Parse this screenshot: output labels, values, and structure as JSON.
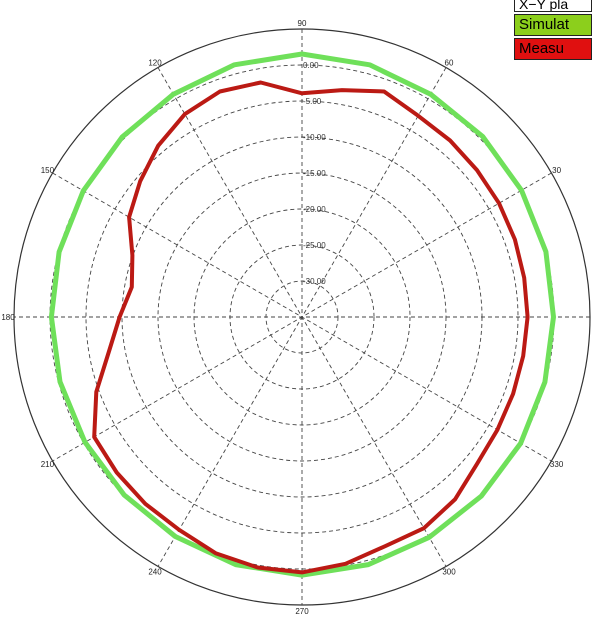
{
  "legend": {
    "title": "X−Y pla",
    "simulated_label": "Simulat",
    "measured_label": "Measu"
  },
  "colors": {
    "simulated": "#6fe05a",
    "simulated_legend": "#8ccf1c",
    "measured": "#bb1a14",
    "measured_legend": "#e01010",
    "grid": "#333333"
  },
  "chart_data": {
    "type": "polar",
    "angle_ticks": [
      "90",
      "60",
      "30",
      "",
      "330",
      "300",
      "270",
      "240",
      "210",
      "180",
      "150",
      "120"
    ],
    "angle_tick_degrees": [
      90,
      60,
      30,
      0,
      330,
      300,
      270,
      240,
      210,
      180,
      150,
      120
    ],
    "radial_tick_labels": [
      "0.00",
      "-5.00",
      "-10.00",
      "-15.00",
      "-20.00",
      "-25.00",
      "-30.00"
    ],
    "r_range_db": [
      -30,
      0
    ],
    "series": [
      {
        "name": "Simulat",
        "angles": [
          0,
          15,
          30,
          45,
          60,
          75,
          90,
          105,
          120,
          135,
          150,
          165,
          180,
          195,
          210,
          225,
          240,
          255,
          270,
          285,
          300,
          315,
          330,
          345
        ],
        "values_db": [
          -3.8,
          -3.7,
          -3.6,
          -3.4,
          -3.2,
          -2.8,
          -2.6,
          -2.8,
          -3.2,
          -3.5,
          -3.7,
          -3.8,
          -3.9,
          -3.9,
          -3.9,
          -3.8,
          -3.6,
          -3.3,
          -3.1,
          -3.3,
          -3.5,
          -3.6,
          -3.7,
          -3.8
        ]
      },
      {
        "name": "Measu",
        "angles": [
          0,
          10,
          20,
          30,
          40,
          50,
          60,
          70,
          80,
          90,
          100,
          110,
          120,
          130,
          140,
          150,
          160,
          170,
          180,
          190,
          200,
          210,
          220,
          230,
          240,
          250,
          260,
          270,
          280,
          290,
          300,
          310,
          320,
          330,
          340,
          350
        ],
        "values_db": [
          -6.5,
          -6.5,
          -6.4,
          -6.3,
          -6.2,
          -6.0,
          -5.8,
          -5.0,
          -6.0,
          -6.7,
          -5.2,
          -5.0,
          -5.6,
          -6.7,
          -8.0,
          -9.2,
          -11.2,
          -12.0,
          -11.0,
          -9.6,
          -7.2,
          -5.0,
          -4.8,
          -4.6,
          -4.4,
          -3.8,
          -3.5,
          -3.4,
          -3.9,
          -4.6,
          -4.6,
          -5.2,
          -6.2,
          -6.5,
          -6.6,
          -6.6
        ]
      }
    ]
  }
}
